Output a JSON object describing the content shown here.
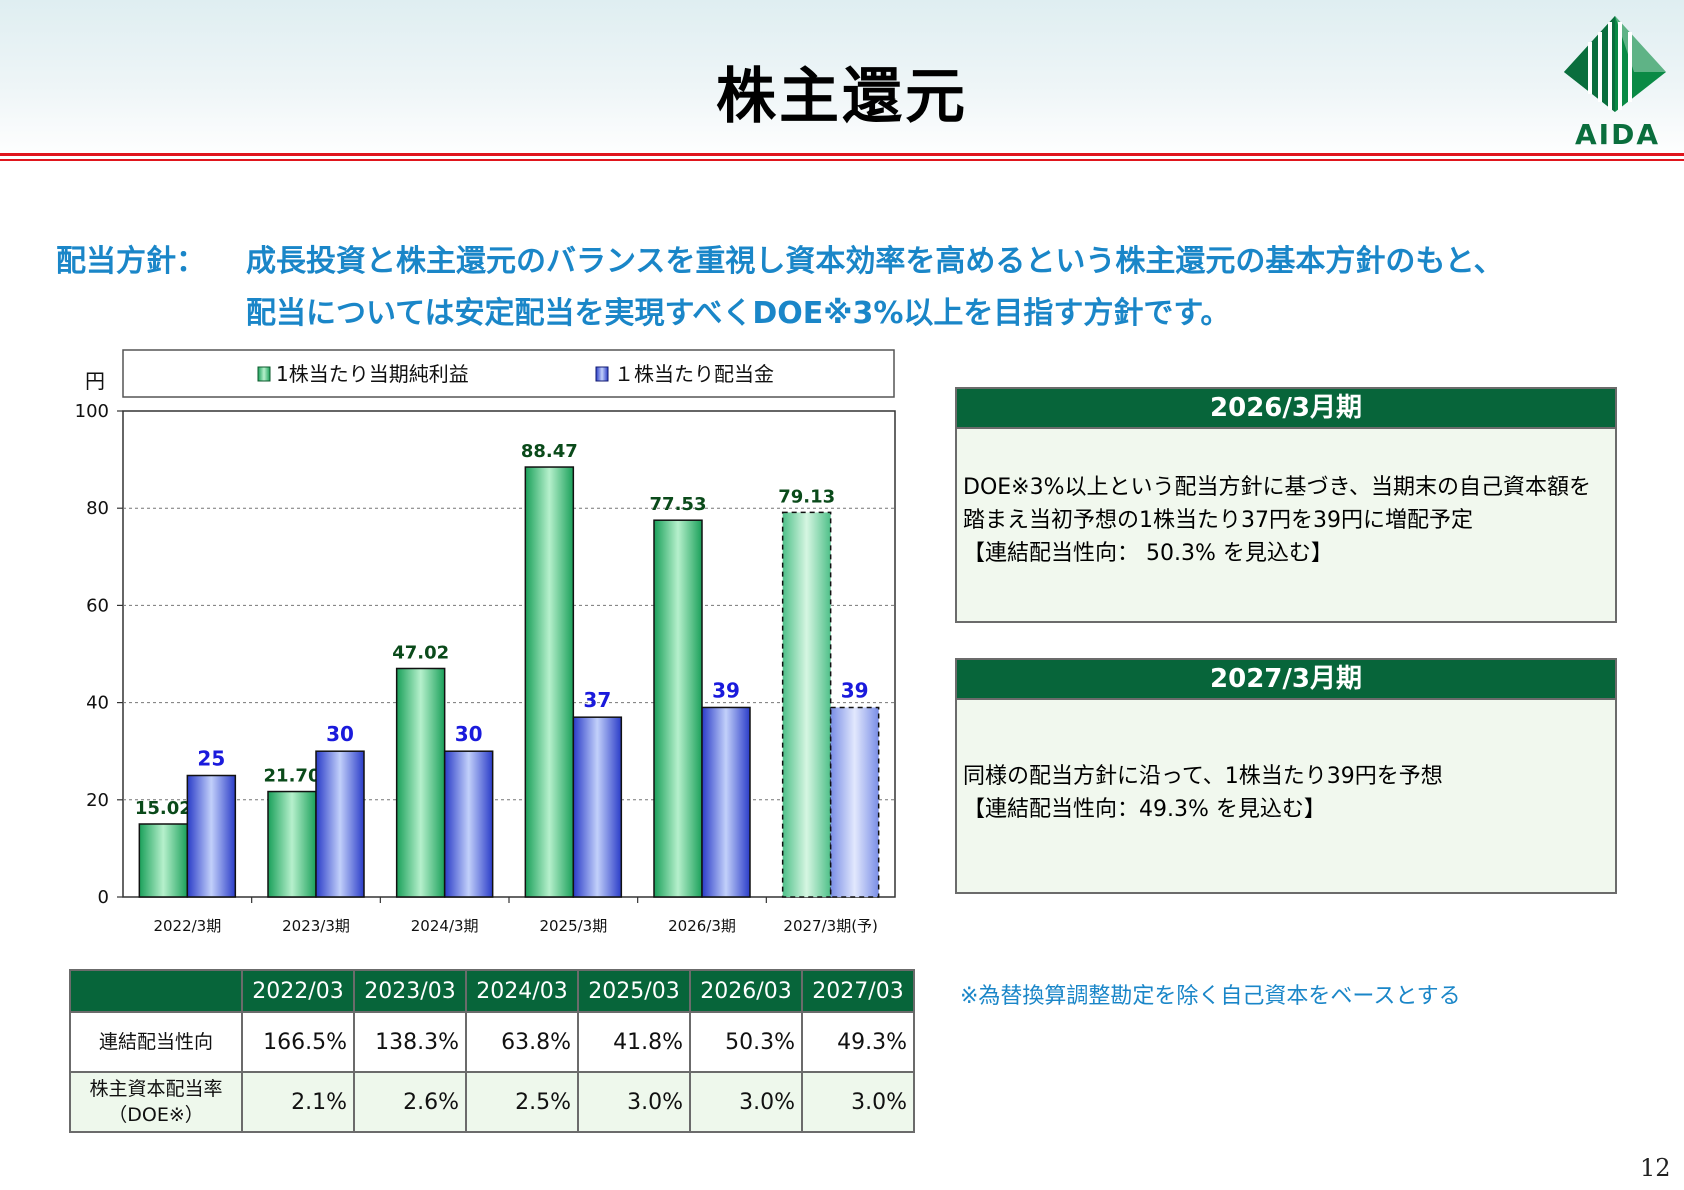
{
  "title": "株主還元",
  "logo_text": "AIDA",
  "policy": {
    "label": "配当方針：",
    "line1": "成長投資と株主還元のバランスを重視し資本効率を高めるという株主還元の基本方針のもと、",
    "line2": "配当については安定配当を実現すべくDOE※3%以上を目指す方針です。"
  },
  "colors": {
    "header_green": "#07653a",
    "policy_blue": "#1a86c8",
    "eps_label": "#0a4a1a",
    "dps_label": "#1a1adc"
  },
  "chart_data": {
    "type": "bar",
    "ylabel": "円",
    "ylim": [
      0,
      100
    ],
    "yticks": [
      0,
      20,
      40,
      60,
      80,
      100
    ],
    "grid": true,
    "legend_position": "top",
    "categories": [
      "2022/3期",
      "2023/3期",
      "2024/3期",
      "2025/3期",
      "2026/3期",
      "2027/3期(予)"
    ],
    "series": [
      {
        "name": "1株当たり当期純利益",
        "values": [
          15.02,
          21.7,
          47.02,
          88.47,
          77.53,
          79.13
        ],
        "labels": [
          "15.02",
          "21.70",
          "47.02",
          "88.47",
          "77.53",
          "79.13"
        ]
      },
      {
        "name": "１株当たり配当金",
        "values": [
          25,
          30,
          30,
          37,
          39,
          39
        ],
        "labels": [
          "25",
          "30",
          "30",
          "37",
          "39",
          "39"
        ]
      }
    ],
    "forecast_index": 5
  },
  "box2026": {
    "title": "2026/3月期",
    "lines": [
      "DOE※3%以上という配当方針に基づき、当期末の自己資本額を",
      "踏まえ当初予想の1株当たり37円を39円に増配予定",
      "【連結配当性向： 50.3% を見込む】"
    ]
  },
  "box2027": {
    "title": "2027/3月期",
    "lines": [
      "同様の配当方針に沿って、1株当たり39円を予想",
      "【連結配当性向：49.3% を見込む】"
    ]
  },
  "note": "※為替換算調整勘定を除く自己資本をベースとする",
  "table": {
    "headers": [
      "2022/03",
      "2023/03",
      "2024/03",
      "2025/03",
      "2026/03",
      "2027/03"
    ],
    "row1_label": "連結配当性向",
    "row1": [
      "166.5%",
      "138.3%",
      "63.8%",
      "41.8%",
      "50.3%",
      "49.3%"
    ],
    "row2_label_a": "株主資本配当率",
    "row2_label_b": "（DOE※）",
    "row2": [
      "2.1%",
      "2.6%",
      "2.5%",
      "3.0%",
      "3.0%",
      "3.0%"
    ]
  },
  "page_number": "12"
}
